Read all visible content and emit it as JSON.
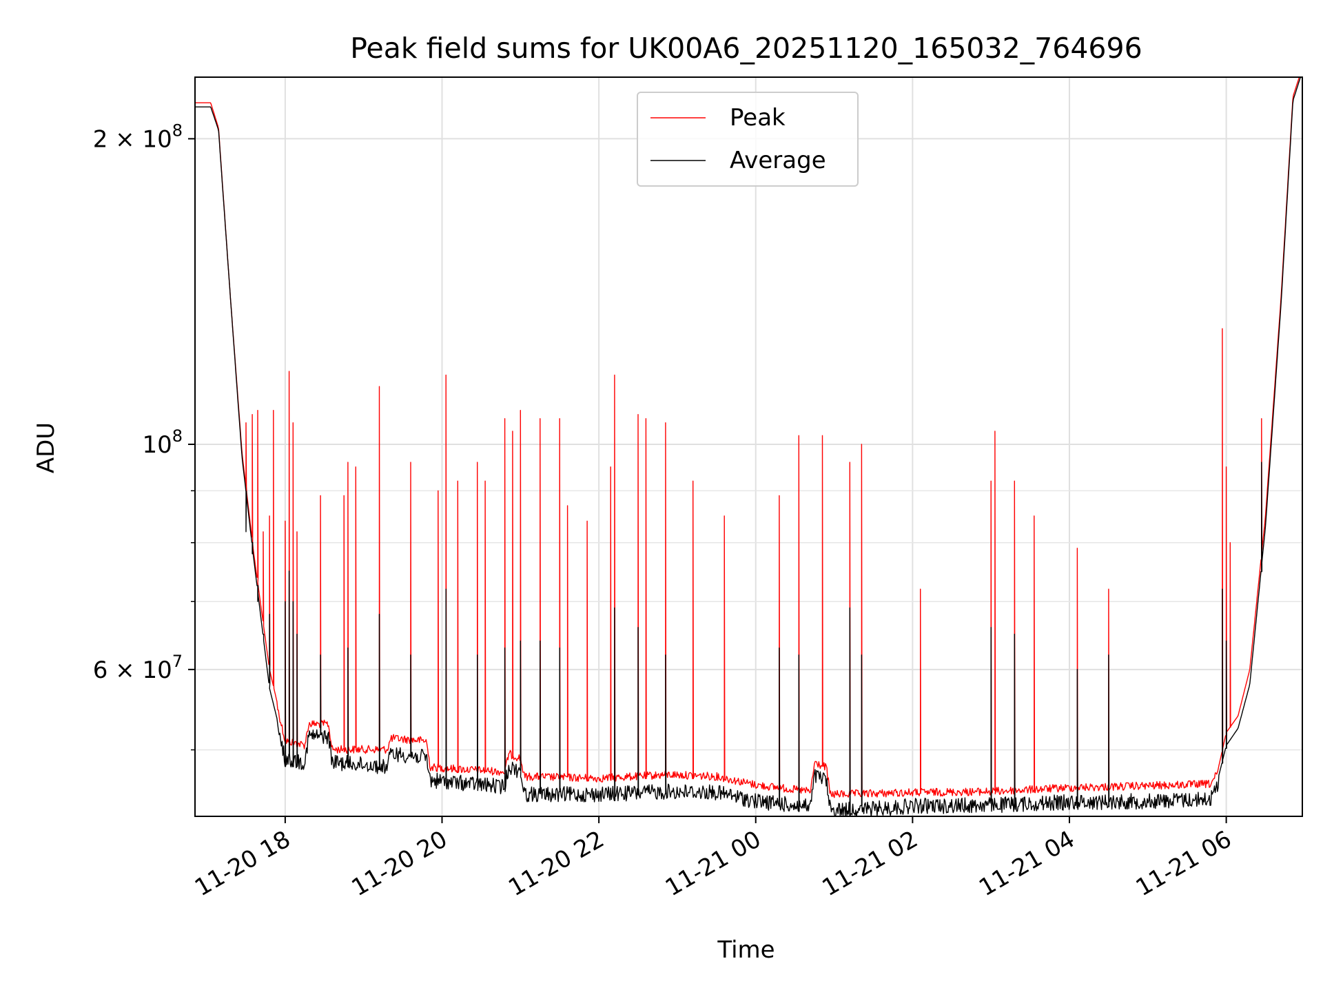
{
  "chart_data": {
    "type": "line",
    "title": "Peak field sums for UK00A6_20251120_165032_764696",
    "xlabel": "Time",
    "ylabel": "ADU",
    "y_scale": "log",
    "ylim": [
      43000000,
      230000000
    ],
    "xlim_hours": [
      16.85,
      30.97
    ],
    "x_ticks": [
      {
        "hour": 18,
        "label": "11-20 18"
      },
      {
        "hour": 20,
        "label": "11-20 20"
      },
      {
        "hour": 22,
        "label": "11-20 22"
      },
      {
        "hour": 24,
        "label": "11-21 00"
      },
      {
        "hour": 26,
        "label": "11-21 02"
      },
      {
        "hour": 28,
        "label": "11-21 04"
      },
      {
        "hour": 30,
        "label": "11-21 06"
      }
    ],
    "y_major_ticks": [
      {
        "value": 100000000,
        "base": "10",
        "exp": "8",
        "coef": ""
      },
      {
        "value": 200000000,
        "base": "10",
        "exp": "8",
        "coef": "2"
      },
      {
        "value": 60000000,
        "base": "10",
        "exp": "7",
        "coef": "6"
      }
    ],
    "y_minor_ticks": [
      50000000,
      70000000,
      80000000,
      90000000
    ],
    "legend": {
      "location": "upper center",
      "entries": [
        "Peak",
        "Average"
      ]
    },
    "series": [
      {
        "name": "Peak",
        "color": "#ff0000",
        "baseline": [
          [
            16.85,
            217000000
          ],
          [
            17.05,
            217000000
          ],
          [
            17.15,
            205000000
          ],
          [
            17.3,
            140000000
          ],
          [
            17.45,
            98000000
          ],
          [
            17.6,
            78000000
          ],
          [
            17.8,
            60000000
          ],
          [
            18.0,
            51500000
          ],
          [
            18.25,
            51000000
          ],
          [
            18.3,
            53500000
          ],
          [
            18.55,
            53500000
          ],
          [
            18.6,
            50500000
          ],
          [
            19.3,
            50500000
          ],
          [
            19.35,
            51800000
          ],
          [
            19.8,
            51500000
          ],
          [
            19.85,
            48500000
          ],
          [
            20.8,
            48000000
          ],
          [
            20.85,
            50000000
          ],
          [
            21.0,
            49500000
          ],
          [
            21.05,
            47500000
          ],
          [
            22.0,
            47300000
          ],
          [
            22.9,
            47700000
          ],
          [
            23.5,
            47500000
          ],
          [
            24.0,
            46600000
          ],
          [
            24.7,
            45900000
          ],
          [
            24.75,
            49000000
          ],
          [
            24.9,
            48500000
          ],
          [
            24.95,
            45600000
          ],
          [
            25.5,
            45700000
          ],
          [
            26.0,
            45800000
          ],
          [
            27.0,
            45900000
          ],
          [
            28.0,
            46300000
          ],
          [
            29.0,
            46500000
          ],
          [
            29.8,
            46700000
          ],
          [
            29.9,
            48000000
          ],
          [
            30.0,
            52000000
          ],
          [
            30.15,
            54000000
          ],
          [
            30.3,
            60000000
          ],
          [
            30.5,
            85000000
          ],
          [
            30.7,
            140000000
          ],
          [
            30.85,
            220000000
          ],
          [
            30.97,
            235000000
          ]
        ],
        "spikes": [
          [
            17.5,
            105000000
          ],
          [
            17.58,
            107000000
          ],
          [
            17.65,
            108000000
          ],
          [
            17.72,
            82000000
          ],
          [
            17.8,
            85000000
          ],
          [
            17.85,
            108000000
          ],
          [
            18.0,
            84000000
          ],
          [
            18.05,
            118000000
          ],
          [
            18.1,
            105000000
          ],
          [
            18.15,
            82000000
          ],
          [
            18.45,
            89000000
          ],
          [
            18.75,
            89000000
          ],
          [
            18.8,
            96000000
          ],
          [
            18.9,
            95000000
          ],
          [
            19.2,
            114000000
          ],
          [
            19.6,
            96000000
          ],
          [
            19.95,
            90000000
          ],
          [
            20.05,
            117000000
          ],
          [
            20.2,
            92000000
          ],
          [
            20.45,
            96000000
          ],
          [
            20.55,
            92000000
          ],
          [
            20.8,
            106000000
          ],
          [
            20.9,
            103000000
          ],
          [
            21.0,
            108000000
          ],
          [
            21.25,
            106000000
          ],
          [
            21.5,
            106000000
          ],
          [
            21.6,
            87000000
          ],
          [
            21.85,
            84000000
          ],
          [
            22.15,
            95000000
          ],
          [
            22.2,
            117000000
          ],
          [
            22.5,
            107000000
          ],
          [
            22.6,
            106000000
          ],
          [
            22.85,
            105000000
          ],
          [
            23.2,
            92000000
          ],
          [
            23.6,
            85000000
          ],
          [
            24.3,
            89000000
          ],
          [
            24.55,
            102000000
          ],
          [
            24.85,
            102000000
          ],
          [
            25.2,
            96000000
          ],
          [
            25.35,
            100000000
          ],
          [
            26.1,
            72000000
          ],
          [
            27.0,
            92000000
          ],
          [
            27.05,
            103000000
          ],
          [
            27.3,
            92000000
          ],
          [
            27.55,
            85000000
          ],
          [
            28.1,
            79000000
          ],
          [
            28.5,
            72000000
          ],
          [
            29.95,
            130000000
          ],
          [
            30.0,
            95000000
          ],
          [
            30.05,
            80000000
          ],
          [
            30.45,
            106000000
          ]
        ]
      },
      {
        "name": "Average",
        "color": "#000000",
        "baseline": [
          [
            16.85,
            215000000
          ],
          [
            17.05,
            215000000
          ],
          [
            17.15,
            204000000
          ],
          [
            17.3,
            140000000
          ],
          [
            17.45,
            97000000
          ],
          [
            17.6,
            77000000
          ],
          [
            17.8,
            57500000
          ],
          [
            18.0,
            49800000
          ],
          [
            18.25,
            49500000
          ],
          [
            18.3,
            52500000
          ],
          [
            18.55,
            52500000
          ],
          [
            18.6,
            49500000
          ],
          [
            19.3,
            49000000
          ],
          [
            19.35,
            50500000
          ],
          [
            19.8,
            50000000
          ],
          [
            19.85,
            47500000
          ],
          [
            20.8,
            46800000
          ],
          [
            20.85,
            49000000
          ],
          [
            21.0,
            48500000
          ],
          [
            21.05,
            46000000
          ],
          [
            22.0,
            46000000
          ],
          [
            22.9,
            46300000
          ],
          [
            23.5,
            46200000
          ],
          [
            24.0,
            45300000
          ],
          [
            24.7,
            44700000
          ],
          [
            24.75,
            48000000
          ],
          [
            24.9,
            47500000
          ],
          [
            24.95,
            44400000
          ],
          [
            25.5,
            44500000
          ],
          [
            26.0,
            44800000
          ],
          [
            27.0,
            44900000
          ],
          [
            28.0,
            45200000
          ],
          [
            29.0,
            45300000
          ],
          [
            29.8,
            45500000
          ],
          [
            29.9,
            47000000
          ],
          [
            30.0,
            50500000
          ],
          [
            30.15,
            52500000
          ],
          [
            30.3,
            58000000
          ],
          [
            30.5,
            83000000
          ],
          [
            30.7,
            138000000
          ],
          [
            30.85,
            218000000
          ],
          [
            30.97,
            233000000
          ]
        ],
        "spikes": [
          [
            17.5,
            82000000
          ],
          [
            17.58,
            78000000
          ],
          [
            17.65,
            70000000
          ],
          [
            17.72,
            65000000
          ],
          [
            17.8,
            68000000
          ],
          [
            18.0,
            70000000
          ],
          [
            18.05,
            75000000
          ],
          [
            18.1,
            70000000
          ],
          [
            18.15,
            65000000
          ],
          [
            18.45,
            62000000
          ],
          [
            18.8,
            63000000
          ],
          [
            19.2,
            68000000
          ],
          [
            19.6,
            62000000
          ],
          [
            20.05,
            72000000
          ],
          [
            20.45,
            62000000
          ],
          [
            20.8,
            63000000
          ],
          [
            21.0,
            64000000
          ],
          [
            21.25,
            64000000
          ],
          [
            21.5,
            63000000
          ],
          [
            22.2,
            69000000
          ],
          [
            22.5,
            66000000
          ],
          [
            22.85,
            62000000
          ],
          [
            24.3,
            63000000
          ],
          [
            24.55,
            62000000
          ],
          [
            25.2,
            69000000
          ],
          [
            25.35,
            62000000
          ],
          [
            27.0,
            66000000
          ],
          [
            27.3,
            65000000
          ],
          [
            28.1,
            60000000
          ],
          [
            28.5,
            62000000
          ],
          [
            29.95,
            72000000
          ],
          [
            30.0,
            64000000
          ],
          [
            30.45,
            96000000
          ]
        ]
      }
    ]
  }
}
